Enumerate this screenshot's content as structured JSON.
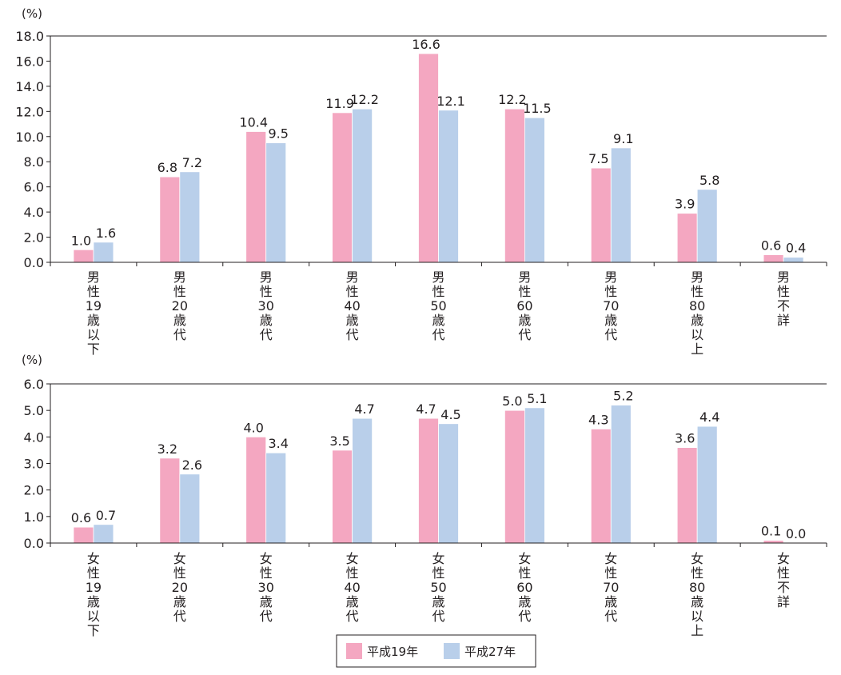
{
  "colors": {
    "series_1": "#f4a7c1",
    "series_2": "#b9cfea",
    "axis": "#231f20"
  },
  "legend": {
    "items": [
      "平成19年",
      "平成27年"
    ]
  },
  "chart_data": [
    {
      "type": "bar",
      "unit_label": "(%)",
      "ylim": [
        0,
        18
      ],
      "yticks": [
        "0.0",
        "2.0",
        "4.0",
        "6.0",
        "8.0",
        "10.0",
        "12.0",
        "14.0",
        "16.0",
        "18.0"
      ],
      "categories": [
        "男性19歳以下",
        "男性20歳代",
        "男性30歳代",
        "男性40歳代",
        "男性50歳代",
        "男性60歳代",
        "男性70歳代",
        "男性80歳以上",
        "男性不詳"
      ],
      "series": [
        {
          "name": "平成19年",
          "values": [
            1.0,
            6.8,
            10.4,
            11.9,
            16.6,
            12.2,
            7.5,
            3.9,
            0.6
          ],
          "labels": [
            "1.0",
            "6.8",
            "10.4",
            "11.9",
            "16.6",
            "12.2",
            "7.5",
            "3.9",
            "0.6"
          ]
        },
        {
          "name": "平成27年",
          "values": [
            1.6,
            7.2,
            9.5,
            12.2,
            12.1,
            11.5,
            9.1,
            5.8,
            0.4
          ],
          "labels": [
            "1.6",
            "7.2",
            "9.5",
            "12.2",
            "12.1",
            "11.5",
            "9.1",
            "5.8",
            "0.4"
          ]
        }
      ],
      "grid": false,
      "legend_position": "bottom"
    },
    {
      "type": "bar",
      "unit_label": "(%)",
      "ylim": [
        0,
        6
      ],
      "yticks": [
        "0.0",
        "1.0",
        "2.0",
        "3.0",
        "4.0",
        "5.0",
        "6.0"
      ],
      "categories": [
        "女性19歳以下",
        "女性20歳代",
        "女性30歳代",
        "女性40歳代",
        "女性50歳代",
        "女性60歳代",
        "女性70歳代",
        "女性80歳以上",
        "女性不詳"
      ],
      "series": [
        {
          "name": "平成19年",
          "values": [
            0.6,
            3.2,
            4.0,
            3.5,
            4.7,
            5.0,
            4.3,
            3.6,
            0.1
          ],
          "labels": [
            "0.6",
            "3.2",
            "4.0",
            "3.5",
            "4.7",
            "5.0",
            "4.3",
            "3.6",
            "0.1"
          ]
        },
        {
          "name": "平成27年",
          "values": [
            0.7,
            2.6,
            3.4,
            4.7,
            4.5,
            5.1,
            5.2,
            4.4,
            0.0
          ],
          "labels": [
            "0.7",
            "2.6",
            "3.4",
            "4.7",
            "4.5",
            "5.1",
            "5.2",
            "4.4",
            "0.0"
          ]
        }
      ],
      "grid": false,
      "legend_position": "bottom"
    }
  ]
}
